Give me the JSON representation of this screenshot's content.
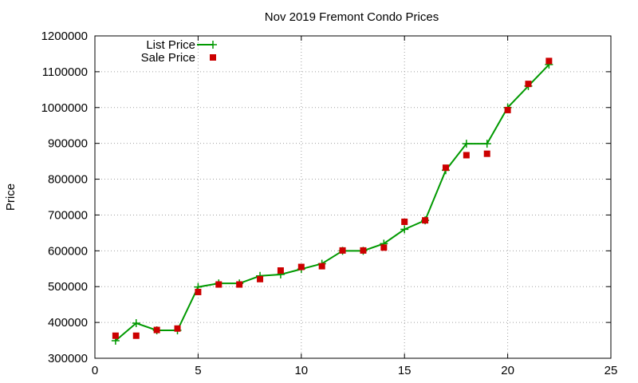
{
  "chart_data": {
    "type": "line",
    "title": "Nov 2019 Fremont Condo Prices",
    "xlabel": "",
    "ylabel": "Price",
    "xlim": [
      0,
      25
    ],
    "ylim": [
      300000,
      1200000
    ],
    "xticks": [
      0,
      5,
      10,
      15,
      20,
      25
    ],
    "yticks": [
      300000,
      400000,
      500000,
      600000,
      700000,
      800000,
      900000,
      1000000,
      1100000,
      1200000
    ],
    "grid": true,
    "legend_position": "top-left",
    "series": [
      {
        "name": "List Price",
        "style": "line-with-plus-markers",
        "color": "#009900",
        "x": [
          1,
          2,
          3,
          4,
          5,
          6,
          7,
          8,
          9,
          10,
          11,
          12,
          13,
          14,
          15,
          16,
          17,
          18,
          19,
          20,
          21,
          22
        ],
        "values": [
          349000,
          398000,
          378000,
          378000,
          499000,
          509000,
          509000,
          530000,
          534000,
          549000,
          564000,
          600000,
          600000,
          620000,
          660000,
          685000,
          825000,
          899000,
          899000,
          1000000,
          1060000,
          1120000
        ]
      },
      {
        "name": "Sale Price",
        "style": "square-markers",
        "color": "#cc0000",
        "x": [
          1,
          2,
          3,
          4,
          5,
          6,
          7,
          8,
          9,
          10,
          11,
          12,
          13,
          14,
          15,
          16,
          17,
          18,
          19,
          20,
          21,
          22
        ],
        "values": [
          363000,
          363000,
          379000,
          383000,
          485000,
          506000,
          506000,
          521000,
          545000,
          555000,
          557000,
          601000,
          601000,
          609000,
          681000,
          685000,
          832000,
          867000,
          871000,
          993000,
          1066000,
          1130000
        ]
      }
    ]
  }
}
